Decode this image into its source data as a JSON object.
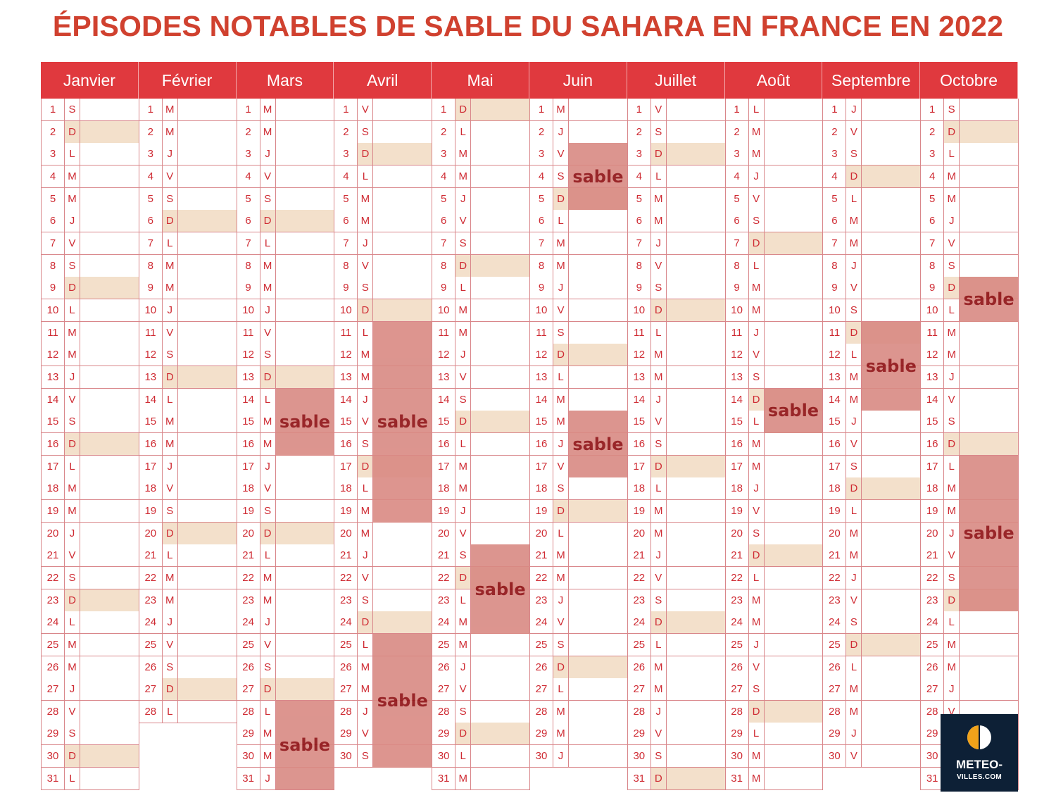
{
  "title": "ÉPISODES NOTABLES DE SABLE DU SAHARA EN FRANCE EN 2022",
  "colors": {
    "title": "#d0412f",
    "header": "#e0393e",
    "weekend": "#f3e0cb",
    "sable": "#d98a83",
    "sable_text": "#8e0f12"
  },
  "sable_label": "sable",
  "months": [
    {
      "name": "Janvier",
      "days": 31,
      "first_weekday": "S"
    },
    {
      "name": "Février",
      "days": 28,
      "first_weekday": "M"
    },
    {
      "name": "Mars",
      "days": 31,
      "first_weekday": "M"
    },
    {
      "name": "Avril",
      "days": 30,
      "first_weekday": "V"
    },
    {
      "name": "Mai",
      "days": 31,
      "first_weekday": "D"
    },
    {
      "name": "Juin",
      "days": 30,
      "first_weekday": "M"
    },
    {
      "name": "Juillet",
      "days": 31,
      "first_weekday": "V"
    },
    {
      "name": "Août",
      "days": 31,
      "first_weekday": "L"
    },
    {
      "name": "Septembre",
      "days": 30,
      "first_weekday": "J"
    },
    {
      "name": "Octobre",
      "days": 31,
      "first_weekday": "S"
    }
  ],
  "weekday_letters": [
    "D",
    "L",
    "M",
    "M",
    "J",
    "V",
    "S"
  ],
  "sable_episodes": [
    {
      "month": "Mars",
      "start": 14,
      "end": 16,
      "label": "sable"
    },
    {
      "month": "Mars",
      "start": 28,
      "end": 31,
      "label": "sable"
    },
    {
      "month": "Avril",
      "start": 11,
      "end": 19,
      "label": "sable"
    },
    {
      "month": "Avril",
      "start": 25,
      "end": 30,
      "label": "sable"
    },
    {
      "month": "Mai",
      "start": 21,
      "end": 24,
      "label": "sable"
    },
    {
      "month": "Juin",
      "start": 3,
      "end": 5,
      "label": "sable"
    },
    {
      "month": "Juin",
      "start": 15,
      "end": 17,
      "label": "sable"
    },
    {
      "month": "Août",
      "start": 14,
      "end": 15,
      "label": "sable"
    },
    {
      "month": "Septembre",
      "start": 11,
      "end": 14,
      "label": "sable"
    },
    {
      "month": "Octobre",
      "start": 9,
      "end": 10,
      "label": "sable"
    },
    {
      "month": "Octobre",
      "start": 17,
      "end": 23,
      "label": "sable"
    }
  ],
  "logo": {
    "line1": "METEO-",
    "line2": "VILLES.COM"
  }
}
